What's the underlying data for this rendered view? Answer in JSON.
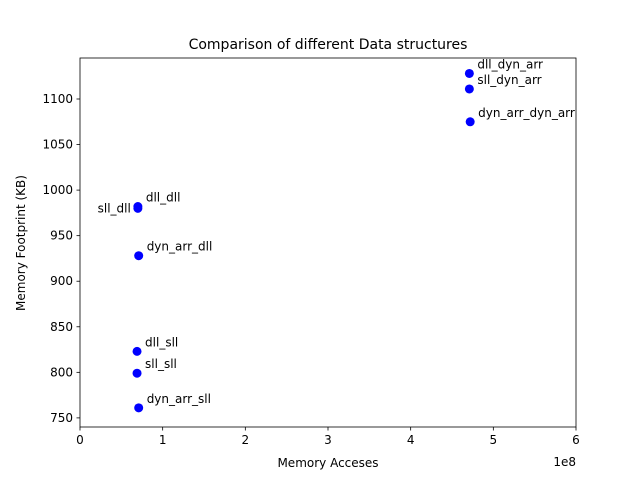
{
  "chart_data": {
    "type": "scatter",
    "title": "Comparison of different Data structures",
    "xlabel": "Memory Acceses",
    "ylabel": "Memory Footprint (KB)",
    "x_offset_label": "1e8",
    "xlim": [
      0,
      600000000
    ],
    "ylim": [
      740,
      1145
    ],
    "x_ticks": [
      0,
      100000000,
      200000000,
      300000000,
      400000000,
      500000000,
      600000000
    ],
    "x_tick_labels": [
      "0",
      "1",
      "2",
      "3",
      "4",
      "5",
      "6"
    ],
    "y_ticks": [
      750,
      800,
      850,
      900,
      950,
      1000,
      1050,
      1100
    ],
    "y_tick_labels": [
      "750",
      "800",
      "850",
      "900",
      "950",
      "1000",
      "1050",
      "1100"
    ],
    "grid": false,
    "marker_color": "#0000ff",
    "points": [
      {
        "label": "dll_dyn_arr",
        "x": 471000000,
        "y": 1128
      },
      {
        "label": "sll_dyn_arr",
        "x": 471000000,
        "y": 1111
      },
      {
        "label": "dyn_arr_dyn_arr",
        "x": 472000000,
        "y": 1075
      },
      {
        "label": "dll_dll",
        "x": 70000000,
        "y": 982
      },
      {
        "label": "sll_dll",
        "x": 70000000,
        "y": 980
      },
      {
        "label": "dyn_arr_dll",
        "x": 71000000,
        "y": 928
      },
      {
        "label": "dll_sll",
        "x": 69000000,
        "y": 823
      },
      {
        "label": "sll_sll",
        "x": 69000000,
        "y": 799
      },
      {
        "label": "dyn_arr_sll",
        "x": 71000000,
        "y": 761
      }
    ]
  }
}
